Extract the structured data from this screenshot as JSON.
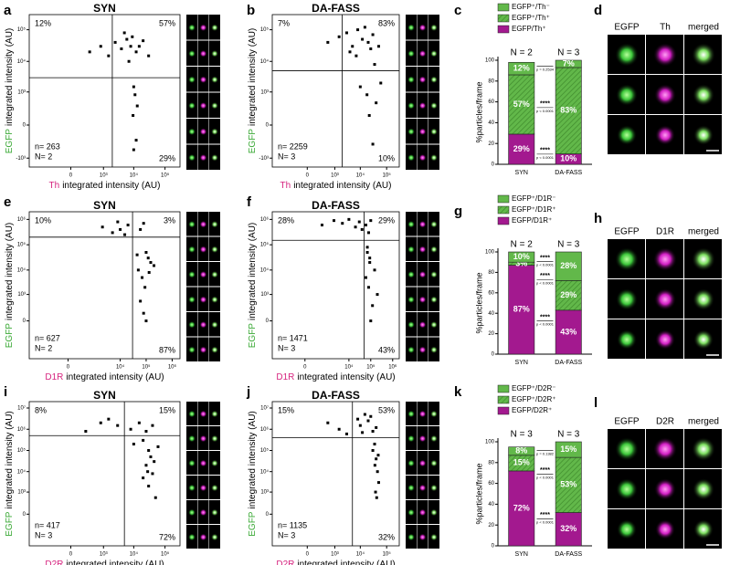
{
  "chart_data": [
    {
      "type": "scatter",
      "panel": "a",
      "title": "SYN",
      "x_marker": "Th",
      "xlabel": "integrated intensity (AU)",
      "y_marker": "EGFP",
      "ylabel": "integrated intensity (AU)",
      "xlim": [
        -2000,
        300000
      ],
      "ylim": [
        -2000,
        300000
      ],
      "xticks": [
        0,
        {
          "value": 1000,
          "label": "10³"
        },
        {
          "value": 10000,
          "label": "10⁴"
        },
        {
          "value": 100000,
          "label": "10⁵"
        }
      ],
      "yticks": [
        {
          "value": -1000,
          "label": "-10³"
        },
        0,
        {
          "value": 1000,
          "label": "10³"
        },
        {
          "value": 10000,
          "label": "10⁴"
        },
        {
          "value": 100000,
          "label": "10⁵"
        }
      ],
      "gate_x": 2000,
      "gate_y": 3000,
      "quadrant_labels": [
        "12%",
        "57%",
        "29%"
      ],
      "counts": [
        "n= 263",
        "N= 2"
      ],
      "color": "#000000",
      "x": [
        300,
        800,
        1500,
        2500,
        4000,
        6000,
        8000,
        12000,
        20000,
        30000,
        5000,
        7000,
        9000,
        15000,
        10000,
        11000,
        13000,
        9500,
        12000,
        10000
      ],
      "values": [
        20000,
        30000,
        15000,
        40000,
        25000,
        50000,
        30000,
        20000,
        45000,
        15000,
        80000,
        10000,
        60000,
        30000,
        1500,
        800,
        300,
        100,
        -200,
        -500
      ]
    },
    {
      "type": "scatter",
      "panel": "b",
      "title": "DA-FASS",
      "x_marker": "Th",
      "xlabel": "integrated intensity (AU)",
      "y_marker": "EGFP",
      "ylabel": "integrated intensity (AU)",
      "xlim": [
        -2000,
        300000
      ],
      "ylim": [
        -2000,
        300000
      ],
      "xticks": [
        0,
        {
          "value": 1000,
          "label": "10³"
        },
        {
          "value": 10000,
          "label": "10⁴"
        },
        {
          "value": 100000,
          "label": "10⁵"
        }
      ],
      "yticks": [
        {
          "value": -1000,
          "label": "-10³"
        },
        0,
        {
          "value": 1000,
          "label": "10³"
        },
        {
          "value": 10000,
          "label": "10⁴"
        },
        {
          "value": 100000,
          "label": "10⁵"
        }
      ],
      "gate_x": 2000,
      "gate_y": 5000,
      "quadrant_labels": [
        "7%",
        "83%",
        "10%"
      ],
      "counts": [
        "n= 2259",
        "N= 3"
      ],
      "color": "#000000",
      "x": [
        500,
        1500,
        3000,
        5000,
        8000,
        12000,
        20000,
        30000,
        50000,
        4000,
        7000,
        15000,
        25000,
        10000,
        18000,
        40000,
        60000,
        30000,
        22000,
        35000
      ],
      "values": [
        40000,
        60000,
        80000,
        30000,
        100000,
        50000,
        40000,
        70000,
        30000,
        20000,
        15000,
        120000,
        25000,
        1500,
        800,
        400,
        2000,
        -300,
        100,
        8000
      ]
    },
    {
      "type": "stacked-bar",
      "panel": "c",
      "categories": [
        "SYN",
        "DA-FASS"
      ],
      "n_labels": [
        "N = 2",
        "N = 3"
      ],
      "ylabel": "%particles/frame",
      "ylim": [
        0,
        100
      ],
      "yticks": [
        0,
        20,
        40,
        60,
        80,
        100
      ],
      "series": [
        {
          "name": "EGFP/Th⁺",
          "color": "#a3198f",
          "pattern": "solid",
          "values": [
            29,
            10
          ],
          "value_labels": [
            "29%",
            "10%"
          ]
        },
        {
          "name": "EGFP⁺/Th⁺",
          "color": "#62b84a",
          "pattern": "hatched",
          "values": [
            57,
            83
          ],
          "value_labels": [
            "57%",
            "83%"
          ]
        },
        {
          "name": "EGFP⁺/Th⁻",
          "color": "#62b84a",
          "pattern": "solid",
          "values": [
            12,
            7
          ],
          "value_labels": [
            "12%",
            "7%"
          ]
        }
      ],
      "significance": [
        {
          "series": 2,
          "p": "p = 0.2534"
        },
        {
          "series": 1,
          "stars": "****",
          "p": "p < 0.0001"
        },
        {
          "series": 0,
          "stars": "****",
          "p": "p < 0.0001"
        }
      ]
    },
    {
      "type": "scatter",
      "panel": "e",
      "title": "SYN",
      "x_marker": "D1R",
      "xlabel": "integrated intensity (AU)",
      "y_marker": "EGFP",
      "ylabel": "integrated intensity (AU)",
      "xlim": [
        -3000,
        2000000
      ],
      "ylim": [
        -3000,
        2000000
      ],
      "xticks": [
        0,
        {
          "value": 10000,
          "label": "10⁴"
        },
        {
          "value": 100000,
          "label": "10⁵"
        },
        {
          "value": 1000000,
          "label": "10⁶"
        }
      ],
      "yticks": [
        0,
        {
          "value": 1000,
          "label": "10³"
        },
        {
          "value": 10000,
          "label": "10⁴"
        },
        {
          "value": 100000,
          "label": "10⁵"
        },
        {
          "value": 1000000,
          "label": "10⁶"
        }
      ],
      "gate_x": 30000,
      "gate_y": 200000,
      "quadrant_labels": [
        "10%",
        "3%",
        "87%"
      ],
      "counts": [
        "n= 627",
        "N= 2"
      ],
      "color": "#000000",
      "x": [
        2000,
        5000,
        8000,
        10000,
        15000,
        20000,
        60000,
        80000,
        100000,
        150000,
        50000,
        70000,
        90000,
        120000,
        200000,
        60000,
        80000,
        100000,
        130000,
        45000
      ],
      "values": [
        500000,
        300000,
        800000,
        400000,
        250000,
        600000,
        400000,
        700000,
        50000,
        20000,
        10000,
        5000,
        2000,
        30000,
        15000,
        500,
        100,
        0,
        8000,
        40000
      ]
    },
    {
      "type": "scatter",
      "panel": "f",
      "title": "DA-FASS",
      "x_marker": "D1R",
      "xlabel": "integrated intensity (AU)",
      "y_marker": "EGFP",
      "ylabel": "integrated intensity (AU)",
      "xlim": [
        -3000,
        2000000
      ],
      "ylim": [
        -3000,
        2000000
      ],
      "xticks": [
        0,
        {
          "value": 10000,
          "label": "10⁴"
        },
        {
          "value": 100000,
          "label": "10⁵"
        },
        {
          "value": 1000000,
          "label": "10⁶"
        }
      ],
      "yticks": [
        0,
        {
          "value": 1000,
          "label": "10³"
        },
        {
          "value": 10000,
          "label": "10⁴"
        },
        {
          "value": 100000,
          "label": "10⁵"
        },
        {
          "value": 1000000,
          "label": "10⁶"
        }
      ],
      "gate_x": 50000,
      "gate_y": 150000,
      "quadrant_labels": [
        "28%",
        "29%",
        "43%"
      ],
      "counts": [
        "n= 1471",
        "N= 3"
      ],
      "color": "#000000",
      "x": [
        500,
        2000,
        5000,
        10000,
        20000,
        30000,
        60000,
        80000,
        100000,
        70000,
        90000,
        150000,
        60000,
        80000,
        120000,
        100000,
        70000,
        90000,
        200000,
        40000
      ],
      "values": [
        600000,
        900000,
        700000,
        1000000,
        500000,
        800000,
        600000,
        300000,
        900000,
        50000,
        20000,
        10000,
        5000,
        2000,
        300,
        0,
        80000,
        30000,
        1000,
        400000
      ]
    },
    {
      "type": "stacked-bar",
      "panel": "g",
      "categories": [
        "SYN",
        "DA-FASS"
      ],
      "n_labels": [
        "N = 2",
        "N = 3"
      ],
      "ylabel": "%particles/frame",
      "ylim": [
        0,
        100
      ],
      "yticks": [
        0,
        20,
        40,
        60,
        80,
        100
      ],
      "series": [
        {
          "name": "EGFP/D1R⁺",
          "color": "#a3198f",
          "pattern": "solid",
          "values": [
            87,
            43
          ],
          "value_labels": [
            "87%",
            "43%"
          ]
        },
        {
          "name": "EGFP⁺/D1R⁺",
          "color": "#62b84a",
          "pattern": "hatched",
          "values": [
            3,
            29
          ],
          "value_labels": [
            "3%",
            "29%"
          ]
        },
        {
          "name": "EGFP⁺/D1R⁻",
          "color": "#62b84a",
          "pattern": "solid",
          "values": [
            10,
            28
          ],
          "value_labels": [
            "10%",
            "28%"
          ]
        }
      ],
      "significance": [
        {
          "series": 2,
          "stars": "****",
          "p": "p < 0.0001"
        },
        {
          "series": 1,
          "stars": "****",
          "p": "p < 0.0001"
        },
        {
          "series": 0,
          "stars": "****",
          "p": "p < 0.0001"
        }
      ]
    },
    {
      "type": "scatter",
      "panel": "i",
      "title": "SYN",
      "x_marker": "D2R",
      "xlabel": "integrated intensity (AU)",
      "y_marker": "EGFP",
      "ylabel": "integrated intensity (AU)",
      "xlim": [
        -2000,
        300000
      ],
      "ylim": [
        -3000,
        20000000
      ],
      "xticks": [
        0,
        {
          "value": 1000,
          "label": "10³"
        },
        {
          "value": 10000,
          "label": "10⁴"
        },
        {
          "value": 100000,
          "label": "10⁵"
        }
      ],
      "yticks": [
        0,
        {
          "value": 1000,
          "label": "10³"
        },
        {
          "value": 10000,
          "label": "10⁴"
        },
        {
          "value": 100000,
          "label": "10⁵"
        },
        {
          "value": 1000000,
          "label": "10⁶"
        },
        {
          "value": 10000000,
          "label": "10⁷"
        }
      ],
      "gate_x": 5000,
      "gate_y": 500000,
      "quadrant_labels": [
        "8%",
        "15%",
        "72%"
      ],
      "counts": [
        "n= 417",
        "N= 3"
      ],
      "color": "#000000",
      "x": [
        200,
        800,
        1500,
        3000,
        8000,
        15000,
        25000,
        40000,
        20000,
        30000,
        35000,
        25000,
        40000,
        20000,
        30000,
        50000,
        10000,
        45000,
        28000,
        60000
      ],
      "values": [
        800000,
        2000000,
        3000000,
        1500000,
        1000000,
        2000000,
        800000,
        1500000,
        300000,
        100000,
        50000,
        20000,
        8000,
        5000,
        2000,
        500,
        200000,
        30000,
        10000,
        150000
      ]
    },
    {
      "type": "scatter",
      "panel": "j",
      "title": "DA-FASS",
      "x_marker": "D2R",
      "xlabel": "integrated intensity (AU)",
      "y_marker": "EGFP",
      "ylabel": "integrated intensity (AU)",
      "xlim": [
        -2000,
        300000
      ],
      "ylim": [
        -3000,
        20000000
      ],
      "xticks": [
        0,
        {
          "value": 1000,
          "label": "10³"
        },
        {
          "value": 10000,
          "label": "10⁴"
        },
        {
          "value": 100000,
          "label": "10⁵"
        }
      ],
      "yticks": [
        0,
        {
          "value": 1000,
          "label": "10³"
        },
        {
          "value": 10000,
          "label": "10⁴"
        },
        {
          "value": 100000,
          "label": "10⁵"
        },
        {
          "value": 1000000,
          "label": "10⁶"
        },
        {
          "value": 10000000,
          "label": "10⁷"
        }
      ],
      "gate_x": 5000,
      "gate_y": 400000,
      "quadrant_labels": [
        "15%",
        "53%",
        "32%"
      ],
      "counts": [
        "n= 1135",
        "N= 3"
      ],
      "color": "#000000",
      "x": [
        500,
        1500,
        3000,
        8000,
        10000,
        20000,
        30000,
        15000,
        40000,
        12000,
        25000,
        35000,
        30000,
        40000,
        45000,
        50000,
        38000,
        42000,
        36000,
        48000
      ],
      "values": [
        2000000,
        1000000,
        600000,
        3000000,
        1500000,
        2500000,
        800000,
        5000000,
        1200000,
        700000,
        4000000,
        200000,
        100000,
        40000,
        10000,
        3000,
        1000,
        500,
        20000,
        60000
      ]
    },
    {
      "type": "stacked-bar",
      "panel": "k",
      "categories": [
        "SYN",
        "DA-FASS"
      ],
      "n_labels": [
        "N = 3",
        "N = 3"
      ],
      "ylabel": "%particles/frame",
      "ylim": [
        0,
        100
      ],
      "yticks": [
        0,
        20,
        40,
        60,
        80,
        100
      ],
      "series": [
        {
          "name": "EGFP/D2R⁺",
          "color": "#a3198f",
          "pattern": "solid",
          "values": [
            72,
            32
          ],
          "value_labels": [
            "72%",
            "32%"
          ]
        },
        {
          "name": "EGFP⁺/D2R⁺",
          "color": "#62b84a",
          "pattern": "hatched",
          "values": [
            15,
            53
          ],
          "value_labels": [
            "15%",
            "53%"
          ]
        },
        {
          "name": "EGFP⁺/D2R⁻",
          "color": "#62b84a",
          "pattern": "solid",
          "values": [
            8,
            15
          ],
          "value_labels": [
            "8%",
            "15%"
          ]
        }
      ],
      "significance": [
        {
          "series": 2,
          "p": "p = 0.1382"
        },
        {
          "series": 1,
          "stars": "****",
          "p": "p < 0.0001"
        },
        {
          "series": 0,
          "stars": "****",
          "p": "p < 0.0001"
        }
      ]
    }
  ],
  "image_panels": [
    {
      "panel": "d",
      "channels": [
        "EGFP",
        "Th",
        "merged"
      ]
    },
    {
      "panel": "h",
      "channels": [
        "EGFP",
        "D1R",
        "merged"
      ]
    },
    {
      "panel": "l",
      "channels": [
        "EGFP",
        "D2R",
        "merged"
      ]
    }
  ]
}
